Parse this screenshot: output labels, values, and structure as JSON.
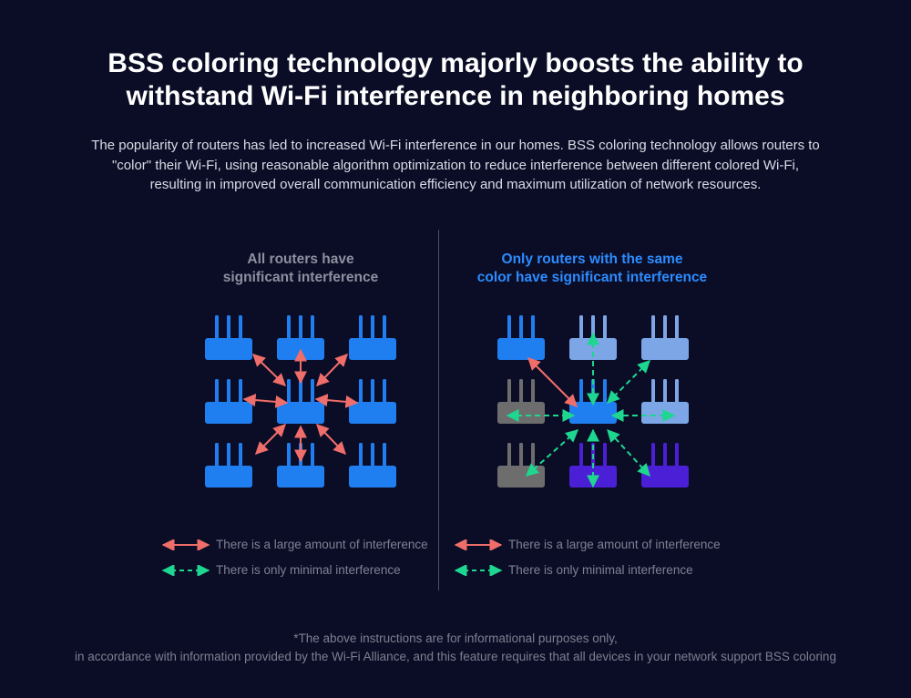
{
  "title": {
    "line1": "BSS coloring technology majorly boosts the ability to",
    "line2": "withstand Wi-Fi interference in neighboring homes"
  },
  "description": {
    "line1": "The popularity of routers has led to increased Wi-Fi interference in our homes. BSS coloring technology allows routers to",
    "line2": "\"color\" their Wi-Fi, using reasonable algorithm optimization to reduce interference between different colored Wi-Fi,",
    "line3": "resulting in improved overall communication efficiency and maximum utilization of network resources."
  },
  "left_panel": {
    "heading_line1": "All routers have",
    "heading_line2": "significant interference",
    "router_colors": [
      "#1f7ef0",
      "#1f7ef0",
      "#1f7ef0",
      "#1f7ef0",
      "#1f7ef0",
      "#1f7ef0",
      "#1f7ef0",
      "#1f7ef0",
      "#1f7ef0"
    ],
    "legend": {
      "large": "There is a large amount of interference",
      "minimal": "There is only minimal interference"
    }
  },
  "right_panel": {
    "heading_line1": "Only routers with the same",
    "heading_line2": "color have significant interference",
    "router_colors": [
      "#1f7ef0",
      "#7ca6e6",
      "#7ca6e6",
      "#6d6d6d",
      "#1f7ef0",
      "#7ca6e6",
      "#6d6d6d",
      "#4a1fd6",
      "#4a1fd6"
    ],
    "legend": {
      "large": "There is a large amount of interference",
      "minimal": "There is only minimal interference"
    }
  },
  "colors": {
    "large_interference": "#f06e6a",
    "minimal_interference": "#1ed690",
    "background": "#0b0d26",
    "heading_accent": "#2c8cff"
  },
  "footnote": {
    "line1": "*The above instructions are for informational purposes only,",
    "line2": "in accordance with information provided by the Wi-Fi Alliance, and this feature requires that all devices in your network support BSS coloring"
  }
}
